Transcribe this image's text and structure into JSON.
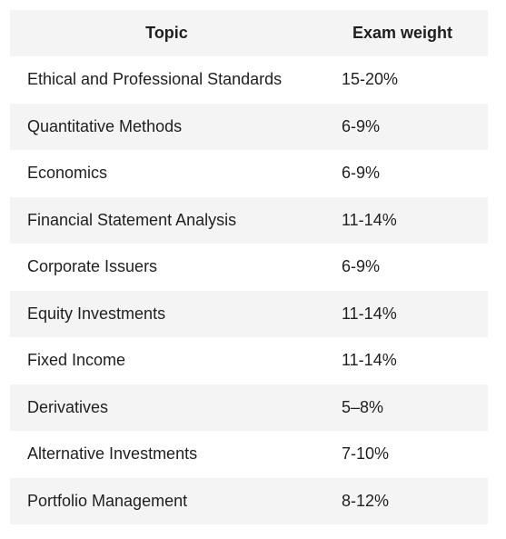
{
  "table": {
    "headers": {
      "topic": "Topic",
      "weight": "Exam weight"
    },
    "rows": [
      {
        "topic": "Ethical and Professional Standards",
        "weight": "15-20%"
      },
      {
        "topic": "Quantitative Methods",
        "weight": "6-9%"
      },
      {
        "topic": "Economics",
        "weight": "6-9%"
      },
      {
        "topic": "Financial Statement Analysis",
        "weight": "11-14%"
      },
      {
        "topic": "Corporate Issuers",
        "weight": "6-9%"
      },
      {
        "topic": "Equity Investments",
        "weight": "11-14%"
      },
      {
        "topic": "Fixed Income",
        "weight": "11-14%"
      },
      {
        "topic": "Derivatives",
        "weight": "5–8%"
      },
      {
        "topic": "Alternative Investments",
        "weight": "7-10%"
      },
      {
        "topic": "Portfolio Management",
        "weight": "8-12%"
      }
    ]
  }
}
